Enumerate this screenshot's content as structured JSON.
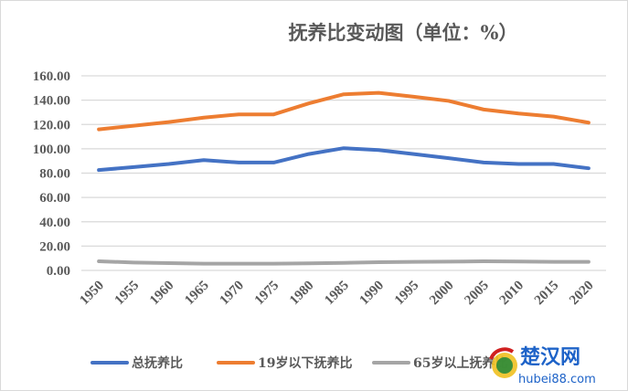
{
  "chart_data": {
    "type": "line",
    "title": "抚养比变动图（单位：%）",
    "categories": [
      "1950",
      "1955",
      "1960",
      "1965",
      "1970",
      "1975",
      "1980",
      "1985",
      "1990",
      "1995",
      "2000",
      "2005",
      "2010",
      "2015",
      "2020"
    ],
    "series": [
      {
        "name": "总抚养比",
        "color": "#4472c4",
        "values": [
          82.5,
          85,
          87.5,
          90.7,
          88.7,
          88.7,
          95.7,
          100.5,
          99,
          95.7,
          92.3,
          88.7,
          87.5,
          87.5,
          84
        ]
      },
      {
        "name": "19岁以下抚养比",
        "color": "#ed7d31",
        "values": [
          116,
          119,
          122,
          125.6,
          128.3,
          128.3,
          137.3,
          144.8,
          146,
          142.8,
          139.4,
          132.3,
          129,
          126.5,
          121.5
        ]
      },
      {
        "name": "65岁以上抚养比",
        "color": "#a5a5a5",
        "values": [
          7.5,
          6.5,
          6,
          5.5,
          5.5,
          5.5,
          5.8,
          6.2,
          6.8,
          7,
          7.2,
          7.5,
          7.3,
          7,
          7
        ]
      }
    ],
    "ylim": [
      0,
      160
    ],
    "yticks": [
      "0.00",
      "20.00",
      "40.00",
      "60.00",
      "80.00",
      "100.00",
      "120.00",
      "140.00",
      "160.00"
    ],
    "grid": true,
    "legend_position": "bottom"
  },
  "watermark": {
    "name": "楚汉网",
    "url": "hubei88.com"
  }
}
